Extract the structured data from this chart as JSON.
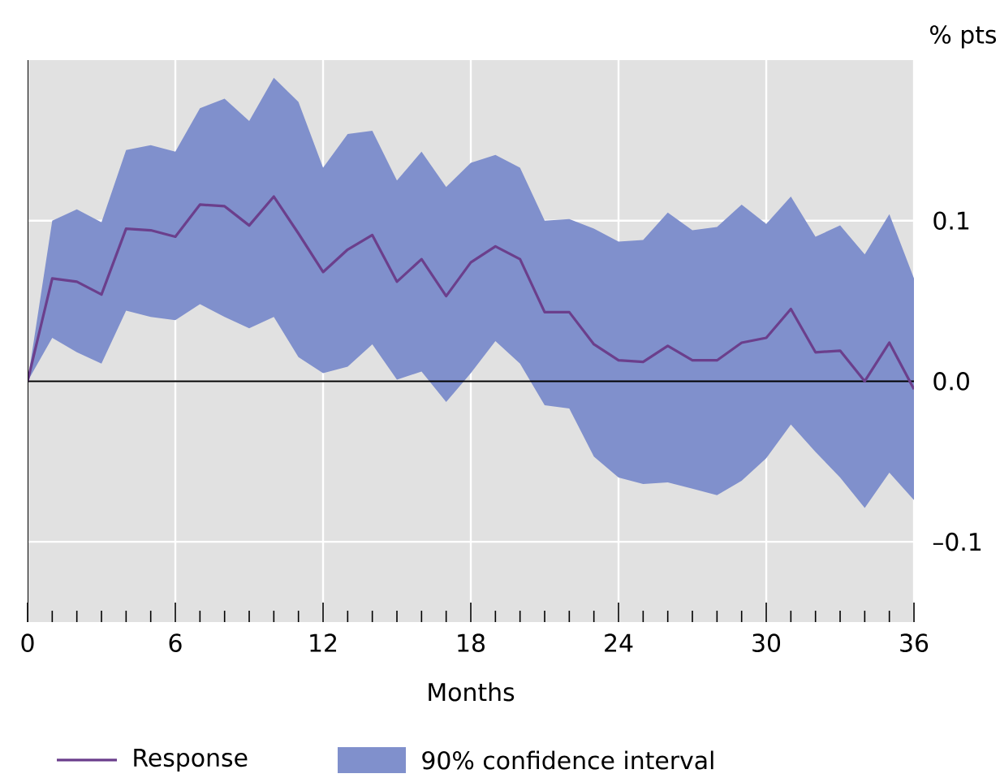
{
  "chart_data": {
    "type": "line",
    "ylabel": "% pts",
    "xlabel": "Months",
    "x": [
      0,
      1,
      2,
      3,
      4,
      5,
      6,
      7,
      8,
      9,
      10,
      11,
      12,
      13,
      14,
      15,
      16,
      17,
      18,
      19,
      20,
      21,
      22,
      23,
      24,
      25,
      26,
      27,
      28,
      29,
      30,
      31,
      32,
      33,
      34,
      35,
      36
    ],
    "series": [
      {
        "name": "Response",
        "color": "#6b3f8c",
        "values": [
          0,
          0.064,
          0.062,
          0.054,
          0.095,
          0.094,
          0.09,
          0.11,
          0.109,
          0.097,
          0.115,
          0.092,
          0.068,
          0.082,
          0.091,
          0.062,
          0.076,
          0.053,
          0.074,
          0.084,
          0.076,
          0.043,
          0.043,
          0.023,
          0.013,
          0.012,
          0.022,
          0.013,
          0.013,
          0.024,
          0.027,
          0.045,
          0.018,
          0.019,
          0.0,
          0.024,
          -0.005
        ],
        "lower": [
          0,
          0.027,
          0.018,
          0.011,
          0.044,
          0.04,
          0.038,
          0.048,
          0.04,
          0.033,
          0.04,
          0.015,
          0.005,
          0.009,
          0.023,
          0.001,
          0.006,
          -0.013,
          0.005,
          0.025,
          0.011,
          -0.015,
          -0.017,
          -0.047,
          -0.06,
          -0.064,
          -0.063,
          -0.067,
          -0.071,
          -0.062,
          -0.048,
          -0.027,
          -0.044,
          -0.06,
          -0.079,
          -0.057,
          -0.074
        ],
        "upper": [
          0,
          0.1,
          0.107,
          0.099,
          0.144,
          0.147,
          0.143,
          0.17,
          0.176,
          0.162,
          0.189,
          0.174,
          0.133,
          0.154,
          0.156,
          0.125,
          0.143,
          0.121,
          0.136,
          0.141,
          0.133,
          0.1,
          0.101,
          0.095,
          0.087,
          0.088,
          0.105,
          0.094,
          0.096,
          0.11,
          0.098,
          0.115,
          0.09,
          0.097,
          0.079,
          0.104,
          0.064
        ]
      }
    ],
    "annotations": [
      "90% confidence interval"
    ],
    "xlim": [
      0,
      36
    ],
    "xticks": [
      0,
      6,
      12,
      18,
      24,
      30,
      36
    ],
    "ylim": [
      -0.15,
      0.2
    ],
    "yticks": [
      {
        "value": -0.1,
        "label": "–0.1"
      },
      {
        "value": 0,
        "label": "0.0"
      },
      0.1
    ],
    "ref_lines": [
      {
        "axis": "y",
        "value": 0,
        "color": "#000000"
      }
    ],
    "grid": true,
    "legend": "bottom"
  }
}
